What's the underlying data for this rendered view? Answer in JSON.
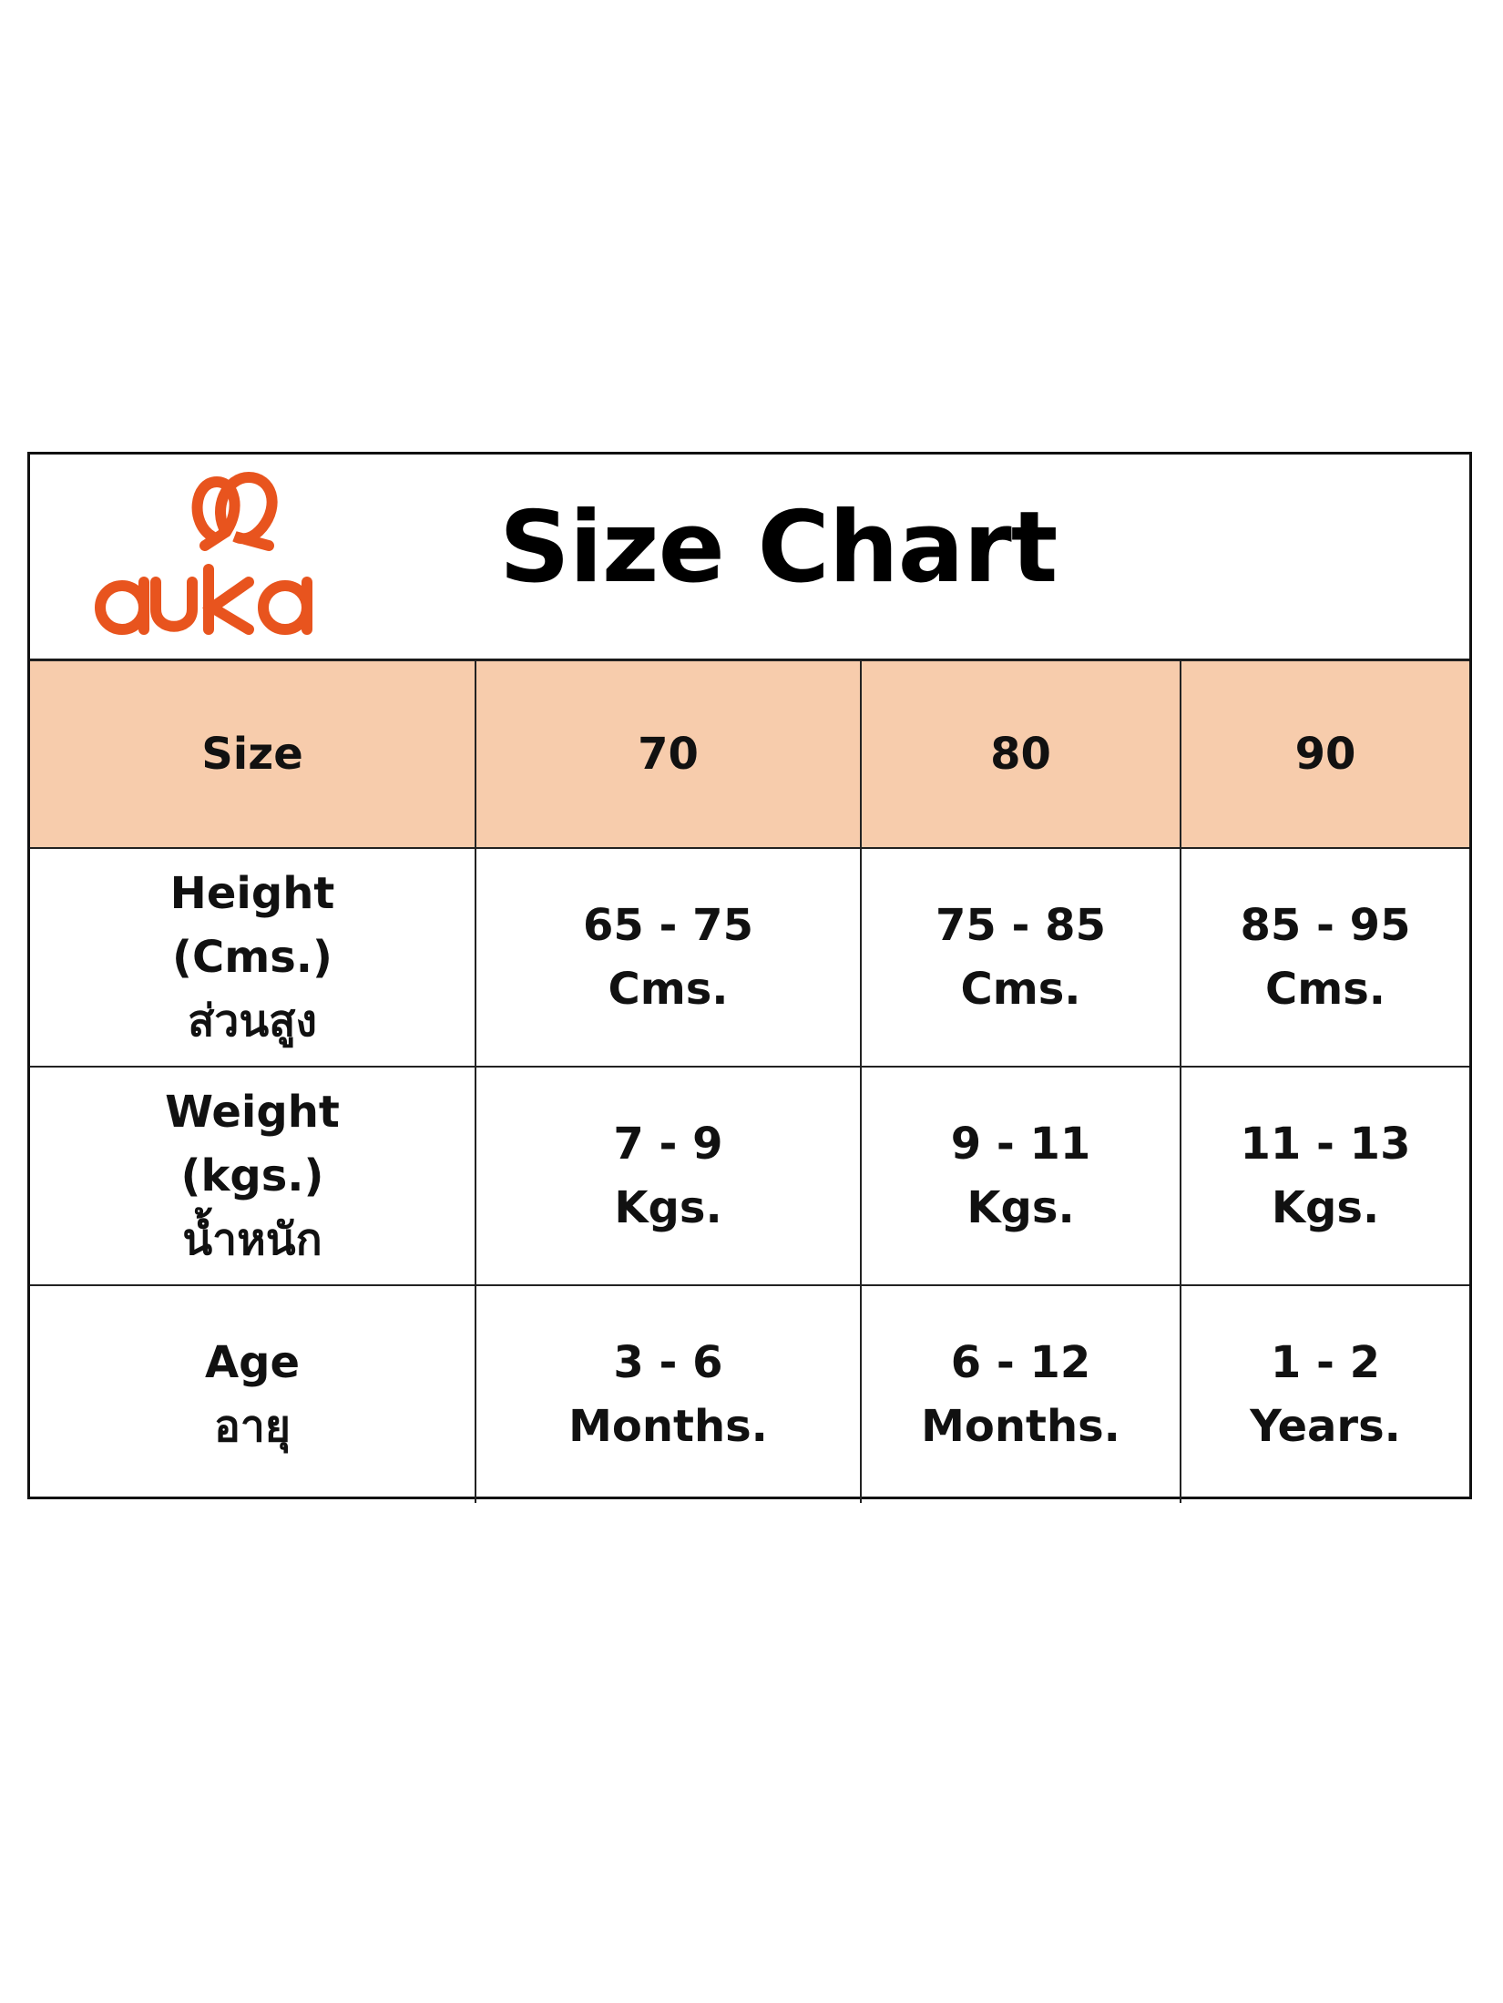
{
  "logo": {
    "text": "auka",
    "color": "#E8541E"
  },
  "title": "Size Chart",
  "header_color": "#F7CCAC",
  "table": {
    "header": [
      "Size",
      "70",
      "80",
      "90"
    ],
    "rows": [
      {
        "label": [
          "Height",
          "(Cms.)",
          "ส่วนสูง"
        ],
        "values": [
          [
            "65 - 75",
            "Cms."
          ],
          [
            "75 - 85",
            "Cms."
          ],
          [
            "85 - 95",
            "Cms."
          ]
        ]
      },
      {
        "label": [
          "Weight",
          "(kgs.)",
          "น้ำหนัก"
        ],
        "values": [
          [
            "7 - 9",
            "Kgs."
          ],
          [
            "9 - 11",
            "Kgs."
          ],
          [
            "11 - 13",
            "Kgs."
          ]
        ]
      },
      {
        "label": [
          "Age",
          "อายุ"
        ],
        "values": [
          [
            "3 - 6",
            "Months."
          ],
          [
            "6 - 12",
            "Months."
          ],
          [
            "1 - 2",
            "Years."
          ]
        ]
      }
    ]
  }
}
